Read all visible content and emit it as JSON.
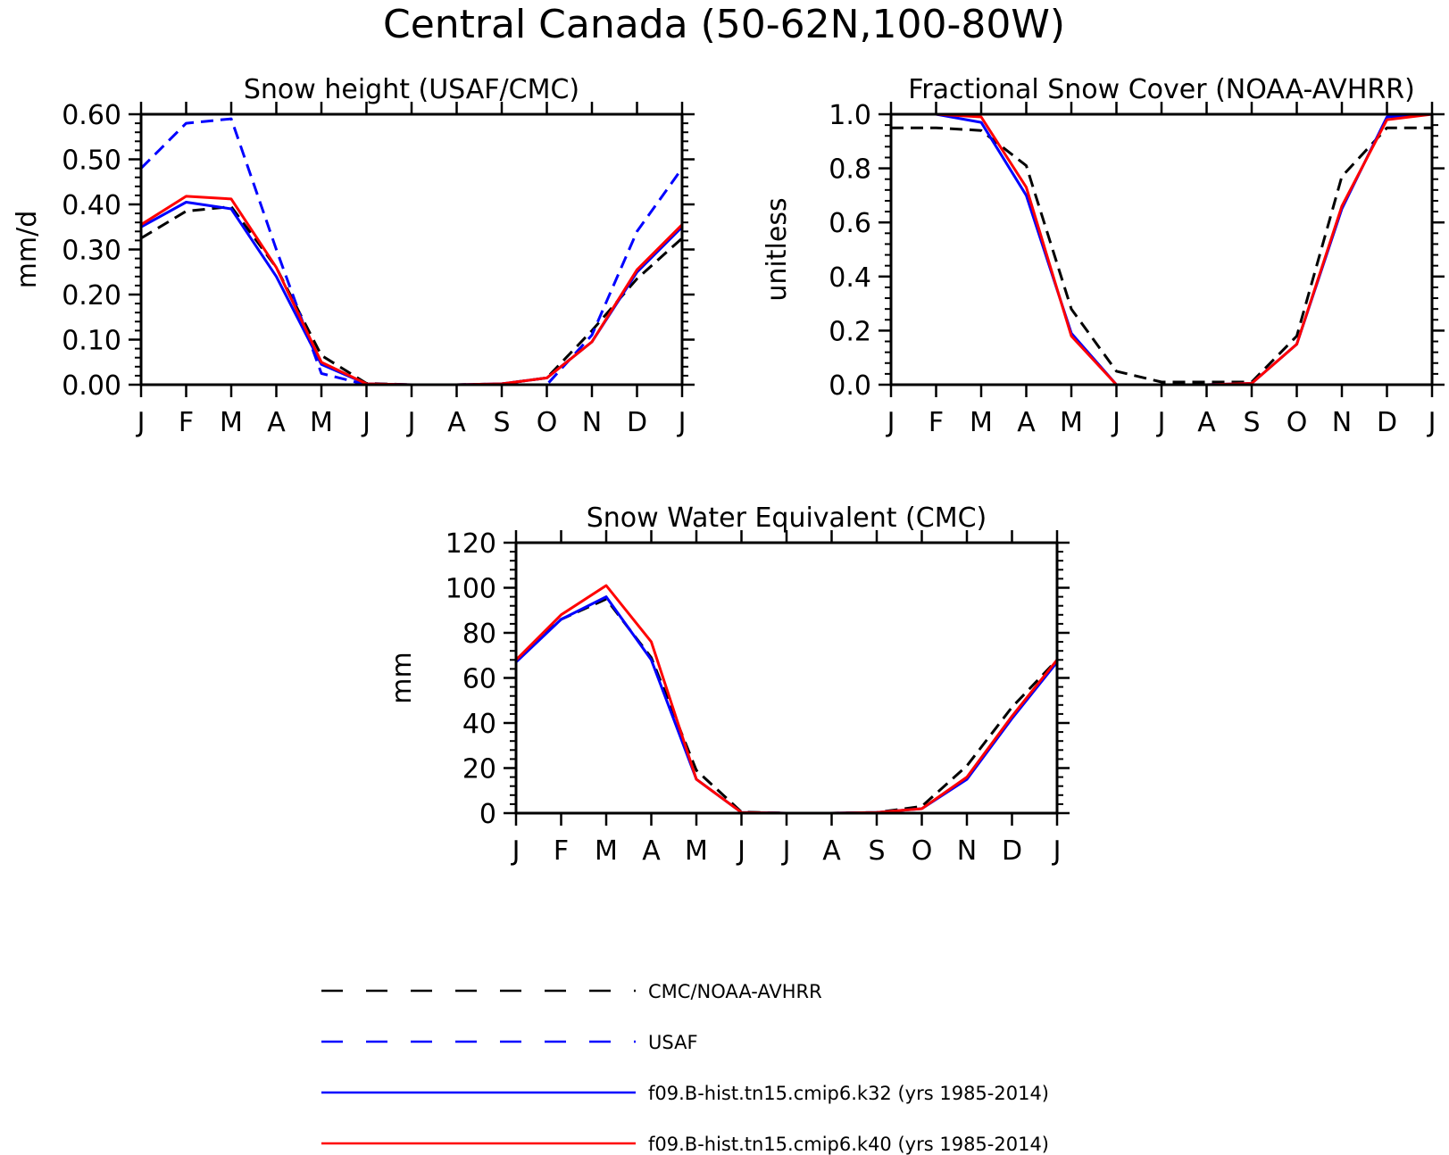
{
  "figure": {
    "title": "Central Canada (50-62N,100-80W)"
  },
  "colors": {
    "obs": "#000000",
    "usaf": "#0000ff",
    "k32": "#0000ff",
    "k40": "#ff0000"
  },
  "legend": [
    {
      "key": "obs",
      "label": "CMC/NOAA-AVHRR",
      "style": "dashed",
      "color": "#000000"
    },
    {
      "key": "usaf",
      "label": "USAF",
      "style": "dashed",
      "color": "#0000ff"
    },
    {
      "key": "k32",
      "label": "f09.B-hist.tn15.cmip6.k32 (yrs 1985-2014)",
      "style": "solid",
      "color": "#0000ff"
    },
    {
      "key": "k40",
      "label": "f09.B-hist.tn15.cmip6.k40 (yrs 1985-2014)",
      "style": "solid",
      "color": "#ff0000"
    }
  ],
  "chart_data": [
    {
      "type": "line",
      "title": "Snow height (USAF/CMC)",
      "xlabel": "",
      "ylabel": "mm/d",
      "categories": [
        "J",
        "F",
        "M",
        "A",
        "M",
        "J",
        "J",
        "A",
        "S",
        "O",
        "N",
        "D",
        "J"
      ],
      "ylim": [
        0,
        0.6
      ],
      "yticks": [
        "0.00",
        "0.10",
        "0.20",
        "0.30",
        "0.40",
        "0.50",
        "0.60"
      ],
      "series": [
        {
          "key": "obs",
          "name": "CMC/NOAA-AVHRR",
          "style": "dashed",
          "color": "#000000",
          "values": [
            0.325,
            0.385,
            0.395,
            0.26,
            0.065,
            0.003,
            0.0,
            0.0,
            0.002,
            0.015,
            0.12,
            0.235,
            0.325
          ]
        },
        {
          "key": "usaf",
          "name": "USAF",
          "style": "dashed",
          "color": "#0000ff",
          "values": [
            0.48,
            0.58,
            0.59,
            0.3,
            0.025,
            0.0,
            0.0,
            0.0,
            0.0,
            0.0,
            0.11,
            0.34,
            0.48
          ]
        },
        {
          "key": "k32",
          "name": "f09.B-hist.tn15.cmip6.k32 (yrs 1985-2014)",
          "style": "solid",
          "color": "#0000ff",
          "values": [
            0.35,
            0.405,
            0.39,
            0.24,
            0.045,
            0.002,
            0.0,
            0.0,
            0.002,
            0.015,
            0.095,
            0.25,
            0.35
          ]
        },
        {
          "key": "k40",
          "name": "f09.B-hist.tn15.cmip6.k40 (yrs 1985-2014)",
          "style": "solid",
          "color": "#ff0000",
          "values": [
            0.355,
            0.418,
            0.412,
            0.26,
            0.05,
            0.002,
            0.0,
            0.0,
            0.002,
            0.015,
            0.095,
            0.255,
            0.355
          ]
        }
      ]
    },
    {
      "type": "line",
      "title": "Fractional Snow Cover (NOAA-AVHRR)",
      "xlabel": "",
      "ylabel": "unitless",
      "categories": [
        "J",
        "F",
        "M",
        "A",
        "M",
        "J",
        "J",
        "A",
        "S",
        "O",
        "N",
        "D",
        "J"
      ],
      "ylim": [
        0,
        1.0
      ],
      "yticks": [
        "0.0",
        "0.2",
        "0.4",
        "0.6",
        "0.8",
        "1.0"
      ],
      "series": [
        {
          "key": "obs",
          "name": "CMC/NOAA-AVHRR",
          "style": "dashed",
          "color": "#000000",
          "values": [
            0.95,
            0.95,
            0.94,
            0.81,
            0.28,
            0.05,
            0.01,
            0.01,
            0.01,
            0.18,
            0.77,
            0.95,
            0.95
          ]
        },
        {
          "key": "k32",
          "name": "f09.B-hist.tn15.cmip6.k32 (yrs 1985-2014)",
          "style": "solid",
          "color": "#0000ff",
          "values": [
            1.0,
            1.0,
            0.97,
            0.7,
            0.19,
            0.0,
            0.0,
            0.0,
            0.005,
            0.15,
            0.65,
            0.99,
            1.0
          ]
        },
        {
          "key": "k40",
          "name": "f09.B-hist.tn15.cmip6.k40 (yrs 1985-2014)",
          "style": "solid",
          "color": "#ff0000",
          "values": [
            1.0,
            1.0,
            0.99,
            0.73,
            0.18,
            0.0,
            0.0,
            0.0,
            0.005,
            0.15,
            0.66,
            0.98,
            1.0
          ]
        }
      ]
    },
    {
      "type": "line",
      "title": "Snow Water Equivalent (CMC)",
      "xlabel": "",
      "ylabel": "mm",
      "categories": [
        "J",
        "F",
        "M",
        "A",
        "M",
        "J",
        "J",
        "A",
        "S",
        "O",
        "N",
        "D",
        "J"
      ],
      "ylim": [
        0,
        120
      ],
      "yticks": [
        "0",
        "20",
        "40",
        "60",
        "80",
        "100",
        "120"
      ],
      "series": [
        {
          "key": "obs",
          "name": "CMC/NOAA-AVHRR",
          "style": "dashed",
          "color": "#000000",
          "values": [
            68,
            86,
            95,
            69,
            19,
            0.5,
            0,
            0,
            0.3,
            3,
            21,
            47,
            68
          ]
        },
        {
          "key": "k32",
          "name": "f09.B-hist.tn15.cmip6.k32 (yrs 1985-2014)",
          "style": "solid",
          "color": "#0000ff",
          "values": [
            67,
            86,
            96,
            68,
            15,
            0.3,
            0,
            0,
            0.3,
            2,
            15,
            42,
            67
          ]
        },
        {
          "key": "k40",
          "name": "f09.B-hist.tn15.cmip6.k40 (yrs 1985-2014)",
          "style": "solid",
          "color": "#ff0000",
          "values": [
            68,
            88,
            101,
            76,
            15,
            0.3,
            0,
            0,
            0.3,
            2,
            16,
            43,
            68
          ]
        }
      ]
    }
  ]
}
